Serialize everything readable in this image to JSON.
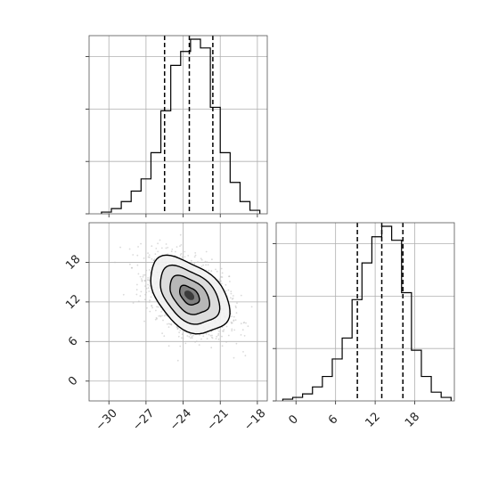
{
  "chart_data": {
    "type": "corner",
    "parameters": [
      "",
      ""
    ],
    "colors": {
      "line": "#000000",
      "grid": "#b0b0b0",
      "density": "#444444",
      "scatter": "#bbbbbb"
    },
    "panels": [
      {
        "id": "hist_x",
        "type": "histogram",
        "xlim": [
          -31.6,
          -17.2
        ],
        "bin_edges": [
          -30.6,
          -29.8,
          -29.0,
          -28.2,
          -27.4,
          -26.6,
          -25.8,
          -25.0,
          -24.2,
          -23.4,
          -22.6,
          -21.8,
          -21.0,
          -20.2,
          -19.4,
          -18.6,
          -17.8
        ],
        "counts": [
          0.01,
          0.03,
          0.07,
          0.13,
          0.2,
          0.35,
          0.59,
          0.85,
          0.93,
          1.0,
          0.95,
          0.61,
          0.35,
          0.18,
          0.07,
          0.02
        ],
        "quantiles": [
          -25.5,
          -23.5,
          -21.6
        ],
        "grid": true
      },
      {
        "id": "hist_y",
        "type": "histogram",
        "xlim": [
          -3,
          24
        ],
        "xticks": [
          0,
          6,
          12,
          18
        ],
        "bin_edges": [
          -2.0,
          -0.5,
          1.0,
          2.5,
          4.0,
          5.5,
          7.0,
          8.5,
          10.0,
          11.5,
          13.0,
          14.5,
          16.0,
          17.5,
          19.0,
          20.5,
          22.0,
          23.5
        ],
        "counts": [
          0.01,
          0.02,
          0.04,
          0.08,
          0.14,
          0.24,
          0.36,
          0.58,
          0.79,
          0.94,
          1.0,
          0.92,
          0.62,
          0.29,
          0.14,
          0.05,
          0.02
        ],
        "quantiles": [
          9.3,
          13.0,
          16.2
        ],
        "grid": true
      },
      {
        "id": "joint",
        "type": "2d-density",
        "xlim": [
          -31.6,
          -17.2
        ],
        "ylim": [
          -3,
          24
        ],
        "xticks": [
          -30,
          -27,
          -24,
          -21,
          -18
        ],
        "yticks": [
          0,
          6,
          12,
          18
        ],
        "center": [
          -23.5,
          13.0
        ],
        "sigma": [
          1.6,
          2.9
        ],
        "correlation": -0.42,
        "contour_levels_sigma": [
          0.5,
          1.0,
          1.5,
          2.0
        ],
        "grid": true
      }
    ]
  }
}
